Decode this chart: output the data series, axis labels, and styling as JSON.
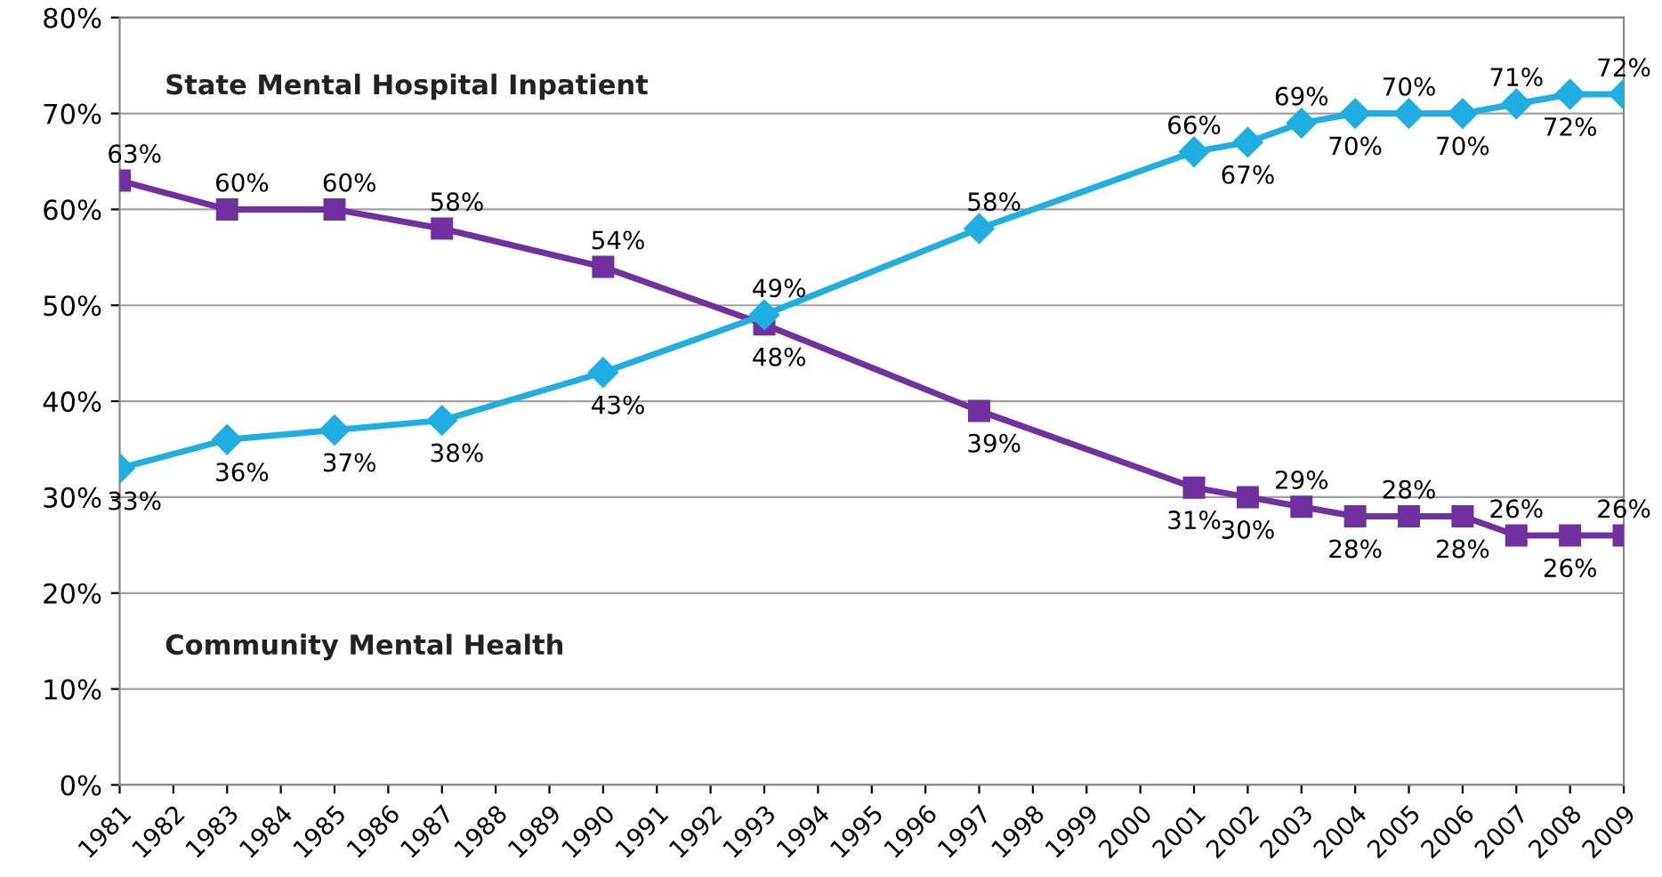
{
  "chart_data": {
    "type": "line",
    "x": [
      1981,
      1983,
      1985,
      1987,
      1990,
      1993,
      1997,
      2001,
      2002,
      2003,
      2004,
      2005,
      2006,
      2007,
      2008,
      2009
    ],
    "series": [
      {
        "color": "#7030a0",
        "marker": "square",
        "values": [
          63,
          60,
          60,
          58,
          54,
          48,
          39,
          31,
          30,
          29,
          28,
          28,
          28,
          26,
          26,
          26
        ],
        "value_labels": [
          "63%",
          "60%",
          "60%",
          "58%",
          "54%",
          "48%",
          "39%",
          "31%",
          "30%",
          "29%",
          "28%",
          "28%",
          "28%",
          "26%",
          "26%",
          "26%"
        ]
      },
      {
        "color": "#1eaee2",
        "marker": "diamond",
        "values": [
          33,
          36,
          37,
          38,
          43,
          49,
          58,
          66,
          67,
          69,
          70,
          70,
          70,
          71,
          72,
          72
        ],
        "value_labels": [
          "33%",
          "36%",
          "37%",
          "38%",
          "43%",
          "49%",
          "58%",
          "66%",
          "67%",
          "69%",
          "70%",
          "70%",
          "70%",
          "71%",
          "72%",
          "72%"
        ]
      }
    ],
    "xlim": [
      1981,
      2009
    ],
    "xticks": [
      1981,
      1982,
      1983,
      1984,
      1985,
      1986,
      1987,
      1988,
      1989,
      1990,
      1991,
      1992,
      1993,
      1994,
      1995,
      1996,
      1997,
      1998,
      1999,
      2000,
      2001,
      2002,
      2003,
      2004,
      2005,
      2006,
      2007,
      2008,
      2009
    ],
    "ylim": [
      0,
      80
    ],
    "yticks": [
      {
        "value": 0,
        "label": "0%"
      },
      {
        "value": 10,
        "label": "10%"
      },
      {
        "value": 20,
        "label": "20%"
      },
      {
        "value": 30,
        "label": "30%"
      },
      {
        "value": 40,
        "label": "40%"
      },
      {
        "value": 50,
        "label": "50%"
      },
      {
        "value": 60,
        "label": "60%"
      },
      {
        "value": 70,
        "label": "70%"
      },
      {
        "value": 80,
        "label": "80%"
      }
    ],
    "annotations": [
      "State Mental Hospital Inpatient",
      "Community Mental Health"
    ],
    "grid": "y",
    "legend": false,
    "line_style": "solid"
  }
}
